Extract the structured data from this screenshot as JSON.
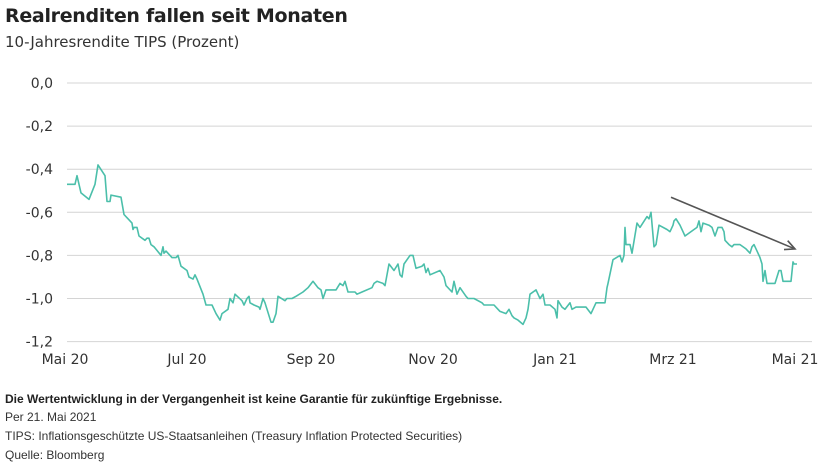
{
  "chart_data": {
    "type": "line",
    "title": "Realrenditen fallen seit Monaten",
    "subtitle": "10-Jahresrendite TIPS (Prozent)",
    "xlabel": "",
    "ylabel": "",
    "x_unit": "days since 1 May 2020",
    "xlim": [
      0,
      366
    ],
    "ylim": [
      -1.2,
      0.0
    ],
    "grid": true,
    "y_ticks": [
      0.0,
      -0.2,
      -0.4,
      -0.6,
      -0.8,
      -1.0,
      -1.2
    ],
    "y_tick_labels": [
      "0,0",
      "-0,2",
      "-0,4",
      "-0,6",
      "-0,8",
      "-1,0",
      "-1,2"
    ],
    "x_ticks": [
      0,
      61,
      123,
      184,
      245,
      304,
      365
    ],
    "x_tick_labels": [
      "Mai 20",
      "Jul 20",
      "Sep 20",
      "Nov 20",
      "Jan 21",
      "Mrz 21",
      "Mai 21"
    ],
    "series": [
      {
        "name": "10-Jahresrendite TIPS",
        "color": "#4bbfaa",
        "x": [
          1,
          5,
          6,
          8,
          12,
          15,
          16.5,
          20,
          21,
          22.5,
          23,
          28,
          29.5,
          33.5,
          34,
          34.5,
          36,
          37,
          40,
          41,
          42,
          43,
          44.5,
          48,
          49,
          49.5,
          50.5,
          53.5,
          55.5,
          56.5,
          58,
          61,
          62,
          64,
          65,
          66,
          69,
          70.5,
          73.5,
          75.5,
          77.5,
          78.5,
          81.5,
          82.5,
          84,
          85,
          88.5,
          89.5,
          91,
          92,
          92.5,
          94.5,
          97,
          97.5,
          99,
          100,
          103,
          104,
          105.5,
          106.5,
          110,
          111,
          113.5,
          115.5,
          119,
          121.5,
          124,
          126.5,
          128,
          129,
          130.5,
          131.5,
          135.5,
          137.5,
          139,
          140,
          141.5,
          145,
          146,
          148.5,
          153.5,
          154.5,
          156,
          159,
          160,
          162,
          164.5,
          166.5,
          167.5,
          168.5,
          169.5,
          172.5,
          174,
          175.5,
          178.5,
          179.5,
          180.5,
          181.5,
          182.5,
          187.5,
          189.5,
          190.5,
          193.5,
          194.5,
          196,
          197.5,
          200.5,
          201.5,
          204.5,
          208.5,
          209.5,
          214.5,
          216.5,
          217.5,
          220.5,
          222,
          223.5,
          224.5,
          226.5,
          229,
          230.5,
          231.5,
          232.5,
          235.5,
          237,
          237.5,
          239,
          240,
          242.5,
          245,
          246,
          246.5,
          248.5,
          250,
          252.5,
          253.5,
          255.5,
          260.5,
          263,
          265.5,
          270,
          271,
          271.5,
          274,
          277.5,
          278.5,
          279.5,
          280,
          280.5,
          282.5,
          283.5,
          286,
          287.5,
          291,
          292,
          293,
          294.5,
          295.5,
          297,
          301,
          302.5,
          304,
          304.5,
          305.5,
          307.5,
          309,
          310,
          314.5,
          316,
          317,
          318,
          319,
          322,
          323.5,
          325,
          326.5,
          328.5,
          329.5,
          330,
          332,
          333.5,
          334.5,
          337.5,
          340.5,
          342.5,
          343.5,
          344.5,
          346.5,
          347.5,
          348.5,
          349,
          350,
          351,
          355,
          357,
          358,
          359,
          363,
          364,
          364.5,
          366
        ],
        "y": [
          -0.47,
          -0.47,
          -0.43,
          -0.51,
          -0.54,
          -0.47,
          -0.38,
          -0.43,
          -0.55,
          -0.55,
          -0.52,
          -0.53,
          -0.61,
          -0.65,
          -0.68,
          -0.67,
          -0.67,
          -0.71,
          -0.73,
          -0.72,
          -0.72,
          -0.75,
          -0.76,
          -0.8,
          -0.76,
          -0.79,
          -0.78,
          -0.81,
          -0.81,
          -0.8,
          -0.85,
          -0.87,
          -0.9,
          -0.91,
          -0.89,
          -0.91,
          -0.98,
          -1.03,
          -1.03,
          -1.07,
          -1.1,
          -1.07,
          -1.05,
          -1.0,
          -1.02,
          -0.98,
          -1.01,
          -1.03,
          -1.0,
          -0.99,
          -1.02,
          -1.03,
          -1.04,
          -1.05,
          -1.0,
          -1.02,
          -1.11,
          -1.11,
          -1.07,
          -0.99,
          -1.01,
          -1.0,
          -1.0,
          -0.99,
          -0.97,
          -0.95,
          -0.92,
          -0.95,
          -0.96,
          -1.0,
          -0.96,
          -0.96,
          -0.96,
          -0.93,
          -0.94,
          -0.92,
          -0.97,
          -0.97,
          -0.98,
          -0.97,
          -0.95,
          -0.93,
          -0.92,
          -0.93,
          -0.94,
          -0.84,
          -0.87,
          -0.84,
          -0.89,
          -0.9,
          -0.84,
          -0.8,
          -0.8,
          -0.86,
          -0.85,
          -0.84,
          -0.88,
          -0.86,
          -0.89,
          -0.87,
          -0.9,
          -0.94,
          -0.97,
          -0.92,
          -0.98,
          -0.95,
          -0.99,
          -1.0,
          -1.0,
          -1.02,
          -1.03,
          -1.03,
          -1.05,
          -1.06,
          -1.07,
          -1.05,
          -1.08,
          -1.09,
          -1.1,
          -1.12,
          -1.09,
          -1.05,
          -0.98,
          -0.96,
          -0.99,
          -1.0,
          -0.98,
          -1.03,
          -1.03,
          -1.05,
          -1.09,
          -1.01,
          -1.04,
          -1.05,
          -1.02,
          -1.05,
          -1.04,
          -1.04,
          -1.07,
          -1.02,
          -1.02,
          -0.95,
          -0.93,
          -0.82,
          -0.8,
          -0.83,
          -0.8,
          -0.67,
          -0.75,
          -0.75,
          -0.79,
          -0.65,
          -0.67,
          -0.62,
          -0.63,
          -0.6,
          -0.76,
          -0.75,
          -0.66,
          -0.68,
          -0.69,
          -0.66,
          -0.64,
          -0.63,
          -0.66,
          -0.69,
          -0.71,
          -0.68,
          -0.67,
          -0.64,
          -0.69,
          -0.65,
          -0.66,
          -0.67,
          -0.71,
          -0.67,
          -0.67,
          -0.69,
          -0.73,
          -0.75,
          -0.76,
          -0.75,
          -0.75,
          -0.77,
          -0.79,
          -0.76,
          -0.75,
          -0.79,
          -0.81,
          -0.84,
          -0.92,
          -0.87,
          -0.93,
          -0.93,
          -0.87,
          -0.87,
          -0.92,
          -0.92,
          -0.83,
          -0.84,
          -0.84
        ]
      }
    ],
    "annotations": [
      {
        "type": "arrow",
        "from": [
          303,
          -0.53
        ],
        "to": [
          365,
          -0.77
        ],
        "color": "#555555"
      }
    ]
  },
  "footer": {
    "disclaimer": "Die Wertentwicklung in der Vergangenheit ist keine Garantie für zukünftige Ergebnisse.",
    "date": "Per 21. Mai 2021",
    "note": "TIPS: Inflationsgeschützte US-Staatsanleihen (Treasury Inflation Protected Securities)",
    "source": "Quelle: Bloomberg"
  }
}
